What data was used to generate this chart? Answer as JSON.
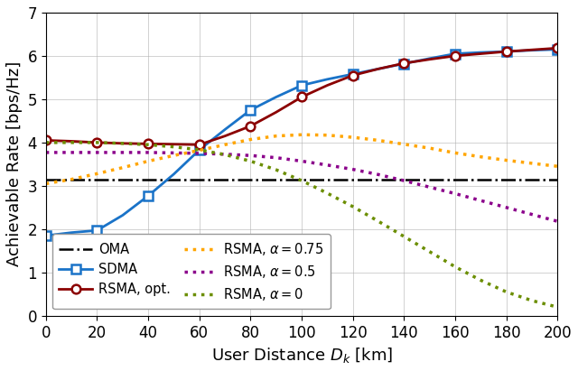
{
  "x_range": [
    0,
    200
  ],
  "y_range": [
    0,
    7
  ],
  "x_ticks": [
    0,
    20,
    40,
    60,
    80,
    100,
    120,
    140,
    160,
    180,
    200
  ],
  "y_ticks": [
    0,
    1,
    2,
    3,
    4,
    5,
    6,
    7
  ],
  "xlabel": "User Distance $D_k$ [km]",
  "ylabel": "Achievable Rate [bps/Hz]",
  "OMA": {
    "x": [
      0,
      10,
      20,
      30,
      40,
      50,
      60,
      70,
      80,
      90,
      100,
      110,
      120,
      130,
      140,
      150,
      160,
      170,
      180,
      190,
      200
    ],
    "y": [
      3.15,
      3.15,
      3.15,
      3.15,
      3.15,
      3.15,
      3.15,
      3.15,
      3.15,
      3.15,
      3.15,
      3.15,
      3.15,
      3.15,
      3.15,
      3.15,
      3.15,
      3.15,
      3.15,
      3.15,
      3.15
    ],
    "color": "#000000",
    "linewidth": 1.8,
    "label": "OMA"
  },
  "SDMA": {
    "x": [
      0,
      10,
      20,
      30,
      40,
      50,
      60,
      70,
      80,
      90,
      100,
      110,
      120,
      130,
      140,
      150,
      160,
      170,
      180,
      190,
      200
    ],
    "y": [
      1.85,
      1.92,
      1.97,
      2.32,
      2.77,
      3.27,
      3.83,
      4.3,
      4.75,
      5.05,
      5.32,
      5.46,
      5.58,
      5.7,
      5.82,
      5.94,
      6.05,
      6.08,
      6.1,
      6.13,
      6.15
    ],
    "color": "#1A73C8",
    "linewidth": 2.0,
    "label": "SDMA",
    "marker": "s",
    "markersize": 7,
    "marker_x": [
      0,
      20,
      40,
      60,
      80,
      100,
      120,
      140,
      160,
      180,
      200
    ],
    "marker_y": [
      1.85,
      1.97,
      2.77,
      3.83,
      4.75,
      5.32,
      5.58,
      5.82,
      6.05,
      6.1,
      6.15
    ]
  },
  "RSMA_opt": {
    "x": [
      0,
      10,
      20,
      30,
      40,
      50,
      60,
      70,
      80,
      90,
      100,
      110,
      120,
      130,
      140,
      150,
      160,
      170,
      180,
      190,
      200
    ],
    "y": [
      4.05,
      4.03,
      4.0,
      3.98,
      3.97,
      3.96,
      3.95,
      4.15,
      4.38,
      4.7,
      5.05,
      5.32,
      5.55,
      5.7,
      5.83,
      5.92,
      6.0,
      6.05,
      6.1,
      6.14,
      6.18
    ],
    "color": "#8B0000",
    "linewidth": 2.0,
    "label": "RSMA, opt.",
    "marker": "o",
    "markersize": 7,
    "marker_x": [
      0,
      20,
      40,
      60,
      80,
      100,
      120,
      140,
      160,
      180,
      200
    ],
    "marker_y": [
      4.05,
      4.0,
      3.97,
      3.95,
      4.38,
      5.05,
      5.55,
      5.83,
      6.0,
      6.1,
      6.18
    ]
  },
  "RSMA_075": {
    "x": [
      0,
      10,
      20,
      30,
      40,
      50,
      60,
      70,
      80,
      90,
      100,
      110,
      120,
      130,
      140,
      150,
      160,
      170,
      180,
      190,
      200
    ],
    "y": [
      3.05,
      3.15,
      3.28,
      3.42,
      3.57,
      3.7,
      3.82,
      3.95,
      4.07,
      4.15,
      4.18,
      4.17,
      4.12,
      4.05,
      3.96,
      3.87,
      3.76,
      3.67,
      3.59,
      3.52,
      3.45
    ],
    "color": "#FFA500",
    "linewidth": 2.5,
    "label": "RSMA, $\\alpha = 0.75$"
  },
  "RSMA_05": {
    "x": [
      0,
      10,
      20,
      30,
      40,
      50,
      60,
      70,
      80,
      90,
      100,
      110,
      120,
      130,
      140,
      150,
      160,
      170,
      180,
      190,
      200
    ],
    "y": [
      3.77,
      3.77,
      3.77,
      3.77,
      3.77,
      3.76,
      3.75,
      3.73,
      3.7,
      3.65,
      3.57,
      3.48,
      3.38,
      3.26,
      3.12,
      2.97,
      2.82,
      2.66,
      2.5,
      2.34,
      2.18
    ],
    "color": "#8B008B",
    "linewidth": 2.5,
    "label": "RSMA, $\\alpha = 0.5$"
  },
  "RSMA_0": {
    "x": [
      0,
      10,
      20,
      30,
      40,
      50,
      60,
      70,
      80,
      90,
      100,
      110,
      120,
      130,
      140,
      150,
      160,
      170,
      180,
      190,
      200
    ],
    "y": [
      4.0,
      4.0,
      4.0,
      3.98,
      3.95,
      3.9,
      3.83,
      3.72,
      3.57,
      3.37,
      3.12,
      2.83,
      2.52,
      2.18,
      1.83,
      1.48,
      1.13,
      0.82,
      0.55,
      0.35,
      0.2
    ],
    "color": "#6B8E00",
    "linewidth": 2.5,
    "label": "RSMA, $\\alpha = 0$"
  },
  "legend_loc": "lower left",
  "legend_fontsize": 10.5,
  "tick_fontsize": 12,
  "label_fontsize": 13,
  "figsize": [
    6.4,
    4.11
  ],
  "dpi": 100
}
